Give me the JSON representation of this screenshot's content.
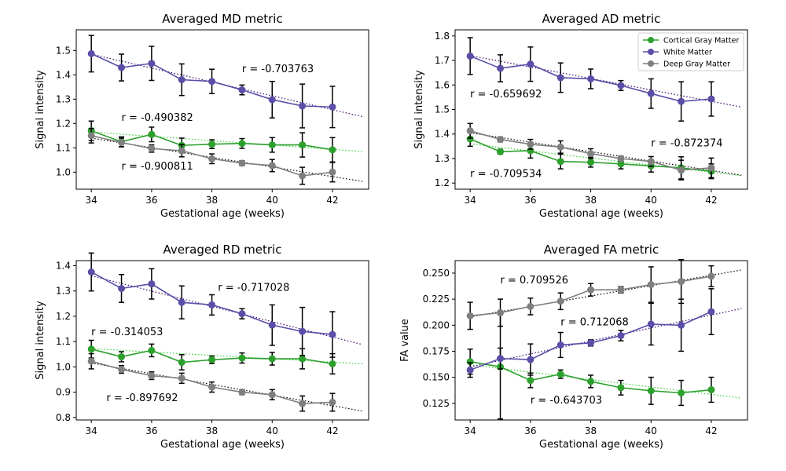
{
  "colors": {
    "cortical": "#2ca02c",
    "white": "#5a4ea8",
    "deep": "#7f7f7f",
    "fit_cortical": "#32cd32",
    "fit_white": "#3a006a",
    "fit_deep": "#000000"
  },
  "legend": {
    "location": "upper-right of Averaged AD metric panel",
    "entries": [
      "Cortical Gray Matter",
      "White Matter",
      "Deep Gray Matter"
    ]
  },
  "chart_data": [
    {
      "type": "line",
      "title": "Averaged MD metric",
      "xlabel": "Gestational age (weeks)",
      "ylabel": "Signal intensity",
      "xlim": [
        33.5,
        43.2
      ],
      "ylim": [
        0.93,
        1.585
      ],
      "xticks": [
        34,
        36,
        38,
        40,
        42
      ],
      "yticks": [
        1.0,
        1.1,
        1.2,
        1.3,
        1.4,
        1.5
      ],
      "ytick_labels": [
        "1.0",
        "1.1",
        "1.2",
        "1.3",
        "1.4",
        "1.5"
      ],
      "grid": false,
      "x": [
        34,
        35,
        36,
        37,
        38,
        39,
        40,
        41,
        42
      ],
      "series": [
        {
          "name": "Cortical Gray Matter",
          "color_key": "cortical",
          "values": [
            1.17,
            1.125,
            1.155,
            1.11,
            1.115,
            1.118,
            1.112,
            1.112,
            1.092
          ],
          "errors": [
            0.04,
            0.02,
            0.03,
            0.03,
            0.018,
            0.02,
            0.03,
            0.05,
            0.05
          ],
          "fit": [
            1.165,
            1.085
          ]
        },
        {
          "name": "White Matter",
          "color_key": "white",
          "values": [
            1.487,
            1.43,
            1.447,
            1.38,
            1.373,
            1.338,
            1.298,
            1.272,
            1.268
          ],
          "errors": [
            0.075,
            0.055,
            0.07,
            0.065,
            0.05,
            0.02,
            0.075,
            0.09,
            0.085
          ],
          "fit": [
            1.485,
            1.228
          ]
        },
        {
          "name": "Deep Gray Matter",
          "color_key": "deep",
          "values": [
            1.15,
            1.122,
            1.097,
            1.088,
            1.055,
            1.037,
            1.027,
            0.985,
            1.0
          ],
          "errors": [
            0.03,
            0.018,
            0.015,
            0.025,
            0.02,
            0.01,
            0.025,
            0.035,
            0.04
          ],
          "fit": [
            1.14,
            0.962
          ]
        }
      ],
      "annotations": [
        {
          "text": "r = -0.703763",
          "x": 39,
          "y": 1.41
        },
        {
          "text": "r = -0.490382",
          "x": 35,
          "y": 1.21
        },
        {
          "text": "r = -0.900811",
          "x": 35,
          "y": 1.01
        }
      ]
    },
    {
      "type": "line",
      "title": "Averaged AD metric",
      "xlabel": "Gestational age (weeks)",
      "ylabel": "Signal intensity",
      "xlim": [
        33.5,
        43.2
      ],
      "ylim": [
        1.175,
        1.825
      ],
      "xticks": [
        34,
        36,
        38,
        40,
        42
      ],
      "yticks": [
        1.2,
        1.3,
        1.4,
        1.5,
        1.6,
        1.7,
        1.8
      ],
      "ytick_labels": [
        "1.2",
        "1.3",
        "1.4",
        "1.5",
        "1.6",
        "1.7",
        "1.8"
      ],
      "grid": false,
      "x": [
        34,
        35,
        36,
        37,
        38,
        39,
        40,
        41,
        42
      ],
      "series": [
        {
          "name": "Cortical Gray Matter",
          "color_key": "cortical",
          "values": [
            1.38,
            1.328,
            1.332,
            1.288,
            1.285,
            1.278,
            1.27,
            1.262,
            1.248
          ],
          "errors": [
            0.03,
            0.01,
            0.03,
            0.03,
            0.02,
            0.02,
            0.025,
            0.045,
            0.03
          ],
          "fit": [
            1.36,
            1.23
          ]
        },
        {
          "name": "White Matter",
          "color_key": "white",
          "values": [
            1.718,
            1.668,
            1.685,
            1.63,
            1.625,
            1.598,
            1.565,
            1.533,
            1.543
          ],
          "errors": [
            0.075,
            0.055,
            0.07,
            0.06,
            0.04,
            0.02,
            0.06,
            0.08,
            0.07
          ],
          "fit": [
            1.72,
            1.51
          ]
        },
        {
          "name": "Deep Gray Matter",
          "color_key": "deep",
          "values": [
            1.413,
            1.378,
            1.358,
            1.347,
            1.32,
            1.3,
            1.288,
            1.253,
            1.262
          ],
          "errors": [
            0.03,
            0.01,
            0.02,
            0.025,
            0.02,
            0.01,
            0.02,
            0.04,
            0.04
          ],
          "fit": [
            1.405,
            1.232
          ]
        }
      ],
      "annotations": [
        {
          "text": "r = -0.659692",
          "x": 34,
          "y": 1.55
        },
        {
          "text": "r = -0.872374",
          "x": 40,
          "y": 1.35
        },
        {
          "text": "r = -0.709534",
          "x": 34,
          "y": 1.225
        }
      ]
    },
    {
      "type": "line",
      "title": "Averaged RD metric",
      "xlabel": "Gestational age (weeks)",
      "ylabel": "Signal intensity",
      "xlim": [
        33.5,
        43.2
      ],
      "ylim": [
        0.79,
        1.42
      ],
      "xticks": [
        34,
        36,
        38,
        40,
        42
      ],
      "yticks": [
        0.8,
        0.9,
        1.0,
        1.1,
        1.2,
        1.3,
        1.4
      ],
      "ytick_labels": [
        "0.8",
        "0.9",
        "1.0",
        "1.1",
        "1.2",
        "1.3",
        "1.4"
      ],
      "grid": false,
      "x": [
        34,
        35,
        36,
        37,
        38,
        39,
        40,
        41,
        42
      ],
      "series": [
        {
          "name": "Cortical Gray Matter",
          "color_key": "cortical",
          "values": [
            1.07,
            1.04,
            1.065,
            1.018,
            1.028,
            1.035,
            1.032,
            1.032,
            1.012
          ],
          "errors": [
            0.035,
            0.02,
            0.025,
            0.03,
            0.015,
            0.02,
            0.025,
            0.04,
            0.04
          ],
          "fit": [
            1.072,
            1.012
          ]
        },
        {
          "name": "White Matter",
          "color_key": "white",
          "values": [
            1.375,
            1.31,
            1.328,
            1.255,
            1.245,
            1.21,
            1.165,
            1.14,
            1.128
          ],
          "errors": [
            0.075,
            0.055,
            0.06,
            0.065,
            0.04,
            0.02,
            0.08,
            0.095,
            0.09
          ],
          "fit": [
            1.36,
            1.088
          ]
        },
        {
          "name": "Deep Gray Matter",
          "color_key": "deep",
          "values": [
            1.022,
            0.99,
            0.965,
            0.955,
            0.92,
            0.9,
            0.89,
            0.855,
            0.86
          ],
          "errors": [
            0.03,
            0.015,
            0.015,
            0.02,
            0.02,
            0.01,
            0.02,
            0.03,
            0.035
          ],
          "fit": [
            1.015,
            0.825
          ]
        }
      ],
      "annotations": [
        {
          "text": "r = -0.717028",
          "x": 38.2,
          "y": 1.3
        },
        {
          "text": "r = -0.314053",
          "x": 34,
          "y": 1.125
        },
        {
          "text": "r = -0.897692",
          "x": 34.5,
          "y": 0.865
        }
      ]
    },
    {
      "type": "line",
      "title": "Averaged FA metric",
      "xlabel": "Gestational age (weeks)",
      "ylabel": "FA value",
      "xlim": [
        33.5,
        43.2
      ],
      "ylim": [
        0.109,
        0.262
      ],
      "xticks": [
        34,
        36,
        38,
        40,
        42
      ],
      "yticks": [
        0.125,
        0.15,
        0.175,
        0.2,
        0.225,
        0.25
      ],
      "ytick_labels": [
        "0.125",
        "0.150",
        "0.175",
        "0.200",
        "0.225",
        "0.250"
      ],
      "grid": false,
      "x": [
        34,
        35,
        36,
        37,
        38,
        39,
        40,
        41,
        42
      ],
      "series": [
        {
          "name": "Cortical Gray Matter",
          "color_key": "cortical",
          "values": [
            0.165,
            0.16,
            0.147,
            0.153,
            0.146,
            0.14,
            0.137,
            0.135,
            0.138
          ],
          "errors": [
            0.012,
            0.05,
            0.007,
            0.004,
            0.006,
            0.007,
            0.013,
            0.012,
            0.012
          ],
          "fit": [
            0.162,
            0.13
          ]
        },
        {
          "name": "White Matter",
          "color_key": "white",
          "values": [
            0.157,
            0.168,
            0.167,
            0.181,
            0.183,
            0.19,
            0.201,
            0.2,
            0.213
          ],
          "errors": [
            0.007,
            0.01,
            0.015,
            0.012,
            0.003,
            0.005,
            0.02,
            0.025,
            0.022
          ],
          "fit": [
            0.16,
            0.216
          ]
        },
        {
          "name": "Deep Gray Matter",
          "color_key": "deep",
          "values": [
            0.209,
            0.212,
            0.218,
            0.223,
            0.234,
            0.234,
            0.239,
            0.242,
            0.247
          ],
          "errors": [
            0.013,
            0.013,
            0.008,
            0.008,
            0.006,
            0.003,
            0.017,
            0.021,
            0.01
          ],
          "fit": [
            0.208,
            0.253
          ]
        }
      ],
      "annotations": [
        {
          "text": "r = 0.709526",
          "x": 35,
          "y": 0.24
        },
        {
          "text": "r = 0.712068",
          "x": 37,
          "y": 0.2
        },
        {
          "text": "r = -0.643703",
          "x": 36,
          "y": 0.125
        }
      ]
    }
  ]
}
